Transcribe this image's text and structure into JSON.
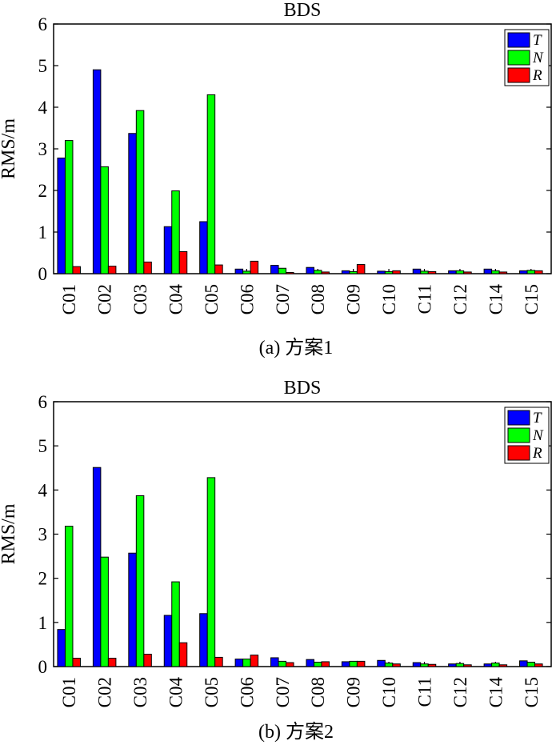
{
  "colors": {
    "T": "#0000ff",
    "N": "#00ff00",
    "R": "#ff0000",
    "axis": "#000000"
  },
  "chart_data": [
    {
      "type": "bar",
      "title": "BDS",
      "caption": "(a) 方案1",
      "xlabel": "",
      "ylabel": "RMS/m",
      "ylim": [
        0,
        6
      ],
      "yticks": [
        "0",
        "1",
        "2",
        "3",
        "4",
        "5",
        "6"
      ],
      "legend_position": "top-right",
      "categories": [
        "C01",
        "C02",
        "C03",
        "C04",
        "C05",
        "C06",
        "C07",
        "C08",
        "C09",
        "C10",
        "C11",
        "C12",
        "C14",
        "C15"
      ],
      "series": [
        {
          "name": "T",
          "values": [
            2.78,
            4.9,
            3.37,
            1.13,
            1.25,
            0.11,
            0.2,
            0.15,
            0.07,
            0.06,
            0.11,
            0.07,
            0.11,
            0.07
          ]
        },
        {
          "name": "N",
          "values": [
            3.2,
            2.57,
            3.92,
            1.99,
            4.3,
            0.06,
            0.13,
            0.08,
            0.05,
            0.05,
            0.06,
            0.07,
            0.07,
            0.08
          ]
        },
        {
          "name": "R",
          "values": [
            0.17,
            0.18,
            0.28,
            0.53,
            0.21,
            0.3,
            0.03,
            0.04,
            0.22,
            0.07,
            0.05,
            0.04,
            0.04,
            0.07
          ]
        }
      ]
    },
    {
      "type": "bar",
      "title": "BDS",
      "caption": "(b) 方案2",
      "xlabel": "",
      "ylabel": "RMS/m",
      "ylim": [
        0,
        6
      ],
      "yticks": [
        "0",
        "1",
        "2",
        "3",
        "4",
        "5",
        "6"
      ],
      "legend_position": "top-right",
      "categories": [
        "C01",
        "C02",
        "C03",
        "C04",
        "C05",
        "C06",
        "C07",
        "C08",
        "C09",
        "C10",
        "C11",
        "C12",
        "C14",
        "C15"
      ],
      "series": [
        {
          "name": "T",
          "values": [
            0.84,
            4.51,
            2.57,
            1.16,
            1.2,
            0.17,
            0.2,
            0.16,
            0.11,
            0.14,
            0.09,
            0.06,
            0.06,
            0.13
          ]
        },
        {
          "name": "N",
          "values": [
            3.18,
            2.48,
            3.87,
            1.92,
            4.28,
            0.17,
            0.12,
            0.1,
            0.12,
            0.08,
            0.06,
            0.07,
            0.08,
            0.1
          ]
        },
        {
          "name": "R",
          "values": [
            0.19,
            0.19,
            0.28,
            0.54,
            0.21,
            0.26,
            0.09,
            0.11,
            0.12,
            0.06,
            0.05,
            0.04,
            0.04,
            0.06
          ]
        }
      ]
    }
  ]
}
